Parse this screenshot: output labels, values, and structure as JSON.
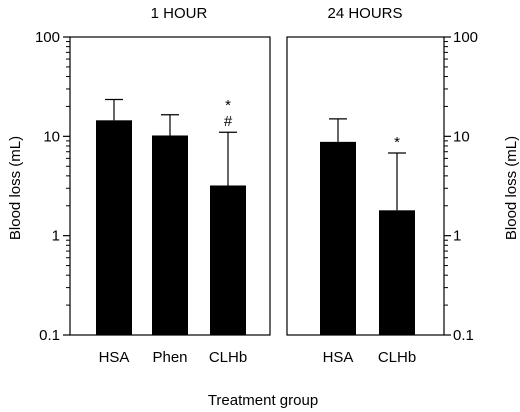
{
  "chart_data": {
    "type": "bar",
    "xlabel": "Treatment group",
    "ylabel": "Blood loss (mL)",
    "yscale": "log",
    "ylim": [
      0.1,
      100
    ],
    "yticks": [
      "0.1",
      "1",
      "10",
      "100"
    ],
    "error_bars": true,
    "grid": false,
    "bar_color": "#000000",
    "panels": [
      {
        "title": "1 HOUR",
        "categories": [
          "HSA",
          "Phen",
          "CLHb"
        ],
        "values": [
          14.5,
          10.2,
          3.2
        ],
        "errors_upper": [
          23.5,
          16.5,
          11.0
        ],
        "annotations": [
          "",
          "",
          "*\n#"
        ]
      },
      {
        "title": "24 HOURS",
        "categories": [
          "HSA",
          "CLHb"
        ],
        "values": [
          8.8,
          1.8
        ],
        "errors_upper": [
          15.0,
          6.8
        ],
        "annotations": [
          "",
          "*"
        ]
      }
    ]
  }
}
